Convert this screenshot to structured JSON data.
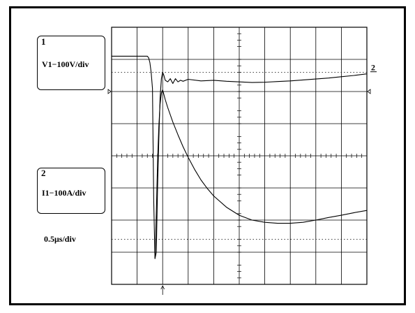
{
  "channel1": {
    "number": "1",
    "scale": "V1−100V/div"
  },
  "channel2": {
    "number": "2",
    "scale": "I1−100A/div"
  },
  "timebase": "0.5μs/div",
  "marker_2": "2",
  "chart_data": {
    "type": "line",
    "title": "",
    "xlabel": "",
    "ylabel": "",
    "grid": true,
    "xlim": [
      0,
      10
    ],
    "ylim": [
      -4,
      4
    ],
    "series": [
      {
        "x": [
          0,
          1.4,
          1.45,
          1.5,
          1.55,
          1.6,
          1.65,
          1.7,
          1.75,
          1.8,
          1.85,
          1.9,
          1.95,
          2.0,
          2.05,
          2.1,
          2.2,
          2.3,
          2.4,
          2.5,
          2.6,
          2.7,
          2.8,
          3.0,
          3.5,
          4.0,
          4.5,
          5.0,
          5.5,
          6.0,
          6.5,
          7.0,
          7.5,
          8.0,
          8.5,
          9.0,
          9.5,
          10.0
        ],
        "values": [
          3.1,
          3.1,
          3.05,
          2.9,
          2.6,
          2.1,
          -1.4,
          -3.2,
          -3.0,
          -1.0,
          0.5,
          1.8,
          2.4,
          2.6,
          2.5,
          2.35,
          2.3,
          2.4,
          2.25,
          2.4,
          2.3,
          2.35,
          2.32,
          2.38,
          2.33,
          2.35,
          2.32,
          2.3,
          2.28,
          2.29,
          2.31,
          2.33,
          2.36,
          2.39,
          2.42,
          2.46,
          2.5,
          2.55
        ]
      },
      {
        "x": [
          1.7,
          1.75,
          1.8,
          1.85,
          1.9,
          1.95,
          2.0,
          2.1,
          2.2,
          2.4,
          2.6,
          2.8,
          3.0,
          3.25,
          3.5,
          3.75,
          4.0,
          4.5,
          5.0,
          5.5,
          6.0,
          6.5,
          7.0,
          7.5,
          8.0,
          8.5,
          9.0,
          9.5,
          10.0
        ],
        "values": [
          -3.2,
          -1.8,
          -0.2,
          0.9,
          1.6,
          1.95,
          2.05,
          1.75,
          1.5,
          1.05,
          0.65,
          0.28,
          -0.05,
          -0.42,
          -0.75,
          -1.02,
          -1.25,
          -1.6,
          -1.85,
          -2.0,
          -2.07,
          -2.1,
          -2.1,
          -2.07,
          -2.0,
          -1.92,
          -1.85,
          -1.77,
          -1.7
        ]
      }
    ],
    "markers": {
      "channel1_ground": 2.0,
      "channel2_ground": -3.0,
      "trigger_x": 2.0
    }
  }
}
